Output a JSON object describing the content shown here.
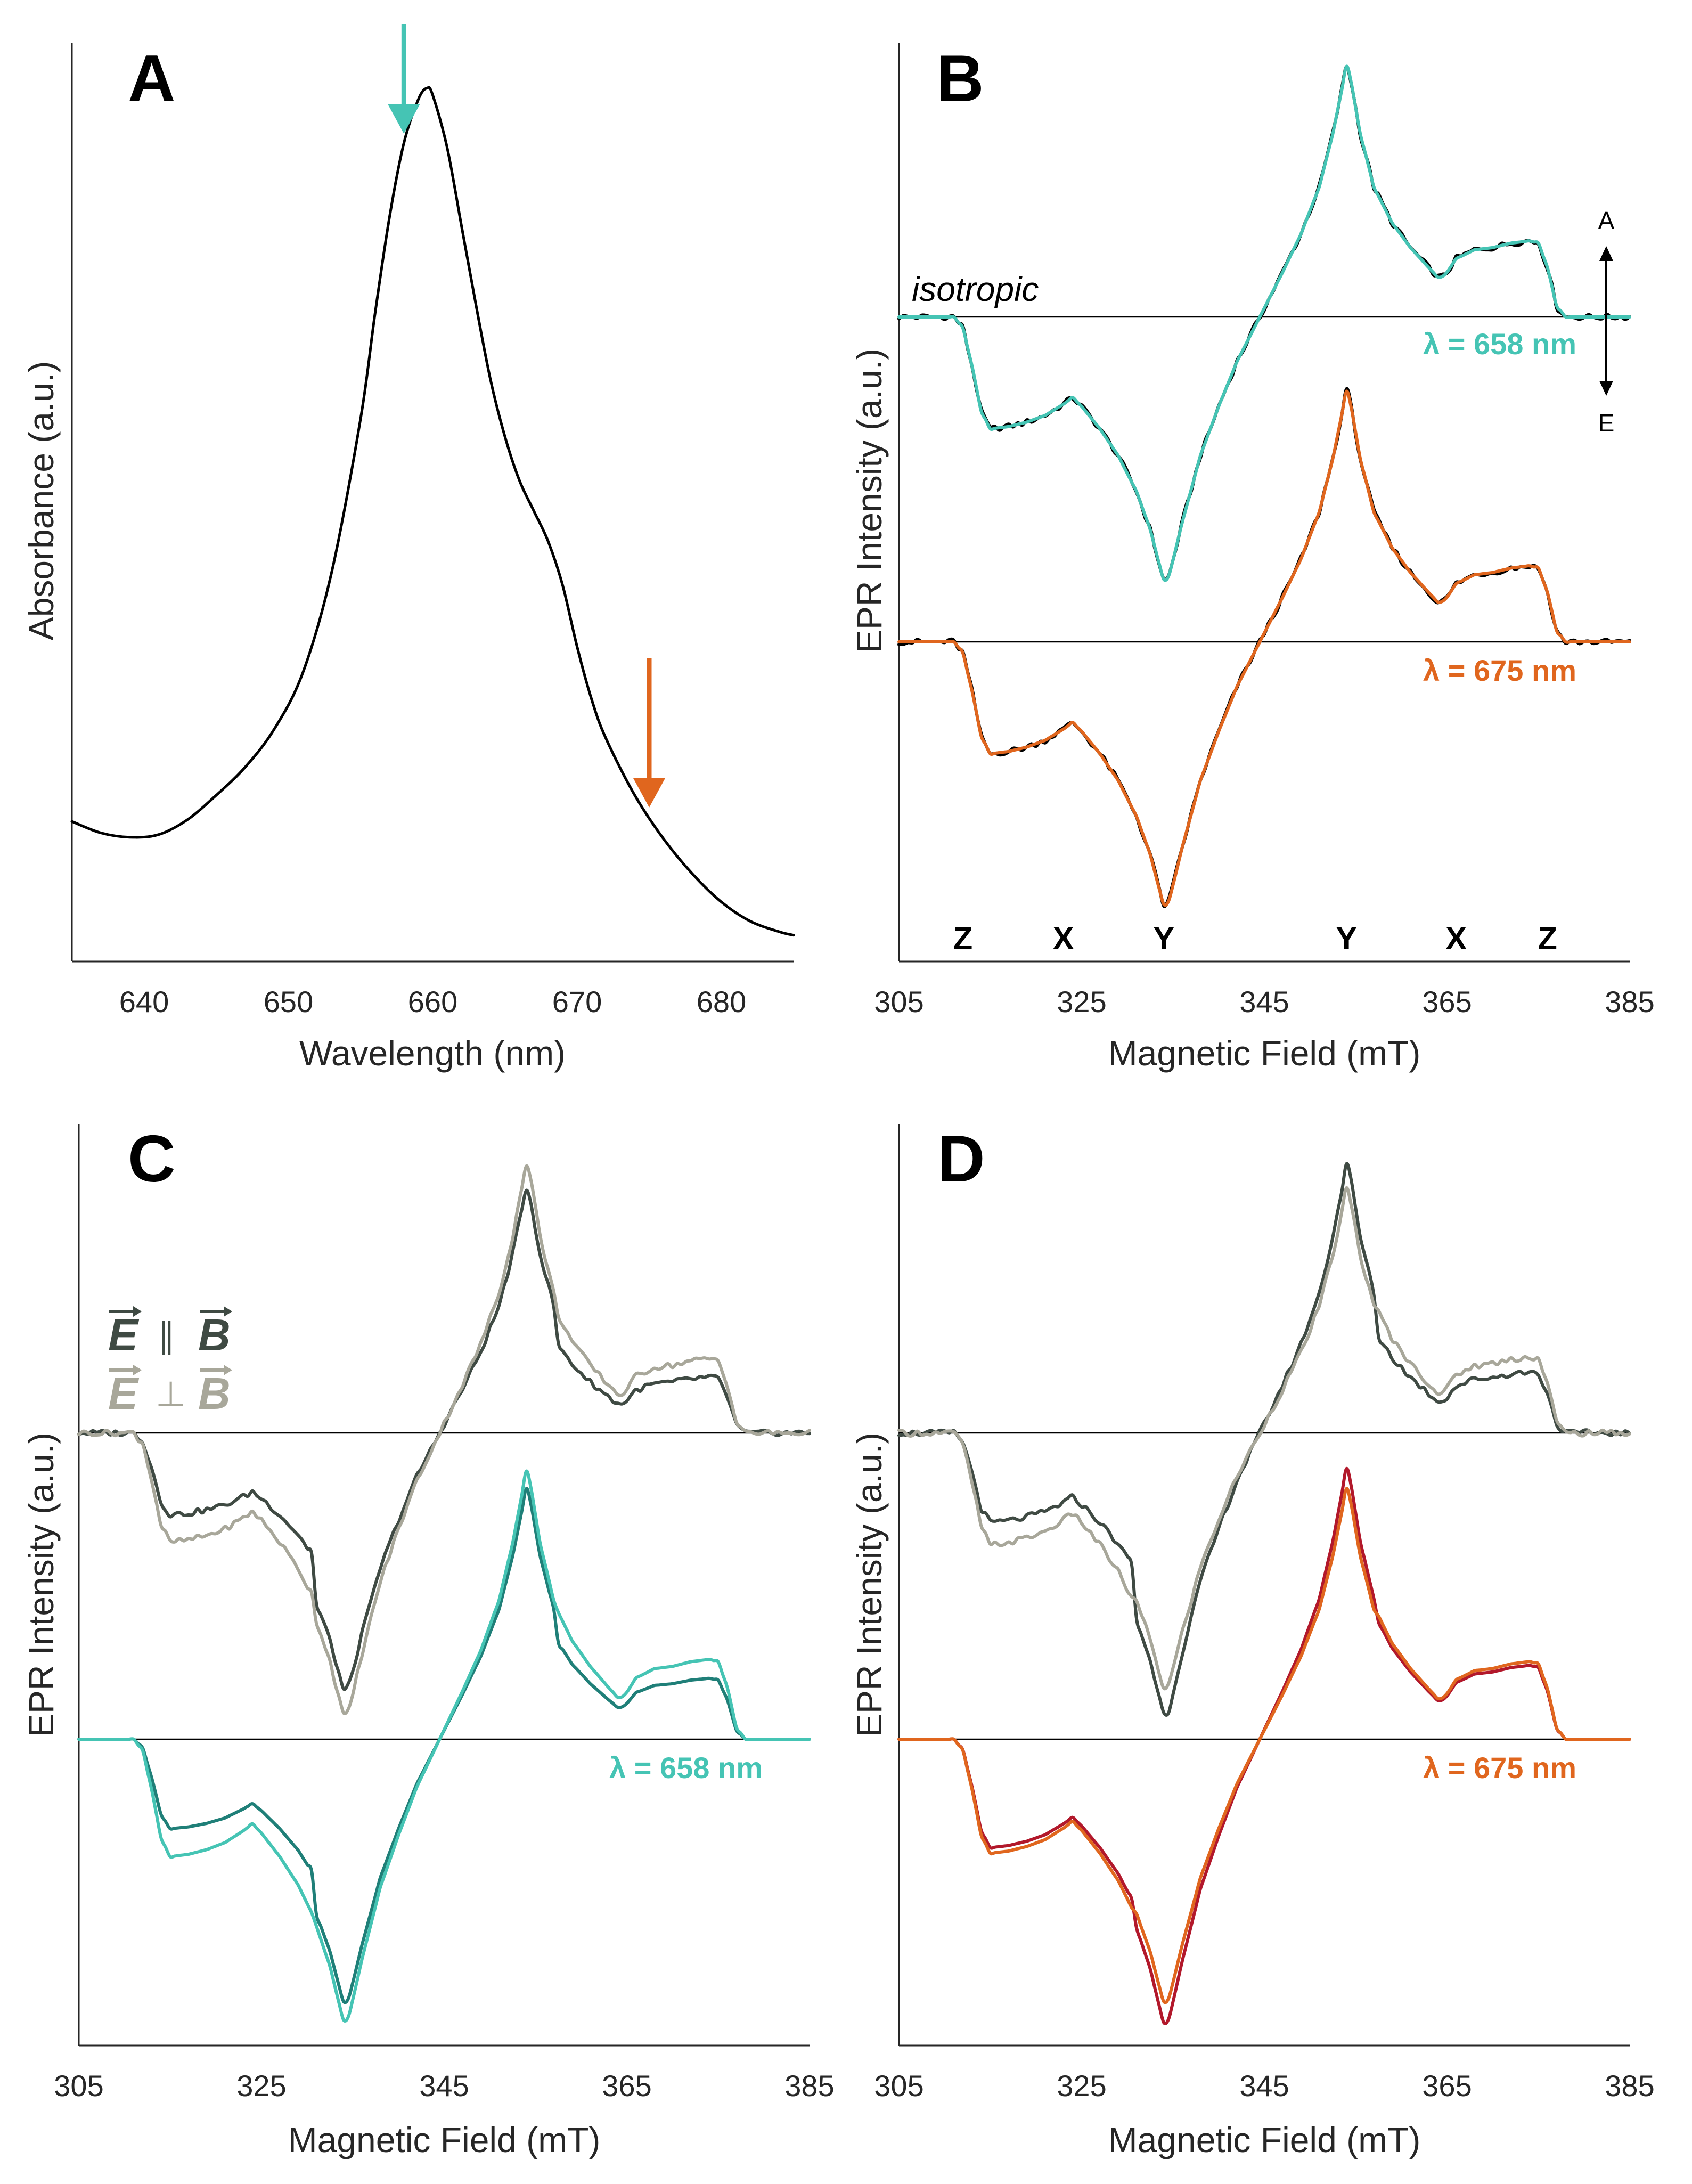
{
  "colors": {
    "teal": "#45c4b4",
    "teal_dark": "#1f7f78",
    "orange": "#e0661e",
    "red_dark": "#b2182b",
    "gray_dark": "#3f4a43",
    "gray_light": "#a8a79a",
    "black": "#000000"
  },
  "chart_data": [
    {
      "panel": "A",
      "type": "line",
      "title": "",
      "xlabel": "Wavelength (nm)",
      "ylabel": "Absorbance (a.u.)",
      "xlim": [
        635,
        685
      ],
      "ylim": [
        0,
        1.05
      ],
      "xticks": [
        "640",
        "650",
        "660",
        "670",
        "680"
      ],
      "series": [
        {
          "name": "absorbance",
          "color": "#000000",
          "x": [
            635,
            637,
            639,
            641,
            643,
            645,
            647,
            649,
            651,
            653,
            655,
            656,
            657,
            658,
            659,
            659.6,
            660,
            661,
            662,
            663,
            664,
            665,
            666,
            667,
            668,
            669,
            670,
            671,
            672,
            674,
            676,
            678,
            680,
            682,
            684,
            685
          ],
          "y": [
            0.16,
            0.147,
            0.142,
            0.145,
            0.162,
            0.19,
            0.222,
            0.265,
            0.33,
            0.445,
            0.62,
            0.74,
            0.85,
            0.935,
            0.985,
            0.998,
            0.99,
            0.93,
            0.84,
            0.75,
            0.665,
            0.6,
            0.55,
            0.515,
            0.48,
            0.43,
            0.36,
            0.3,
            0.255,
            0.19,
            0.14,
            0.1,
            0.068,
            0.046,
            0.034,
            0.03
          ]
        }
      ],
      "annotations": [
        {
          "type": "arrow",
          "x": 658,
          "color": "#45c4b4"
        },
        {
          "type": "arrow",
          "x": 675,
          "color": "#e0661e"
        }
      ]
    },
    {
      "panel": "B",
      "type": "line",
      "xlabel": "Magnetic Field (mT)",
      "ylabel": "EPR Intensity (a.u.)",
      "xlim": [
        305,
        385
      ],
      "xticks": [
        "305",
        "325",
        "345",
        "365",
        "385"
      ],
      "text_annotations": [
        "isotropic"
      ],
      "axis_labels": [
        "Z",
        "X",
        "Y",
        "Y",
        "X",
        "Z"
      ],
      "axis_label_fields": [
        312,
        323,
        334,
        354,
        366,
        376
      ],
      "absorption_label": "A",
      "emission_label": "E",
      "series": [
        {
          "name": "isotropic fit (658 nm)",
          "offset": 1,
          "color": "#000000",
          "amp_scale": 1.0
        },
        {
          "name": "λ = 658 nm",
          "offset": 1,
          "color": "#45c4b4",
          "amp_scale": 1.0
        },
        {
          "name": "isotropic fit (675 nm)",
          "offset": 0,
          "color": "#000000",
          "amp_scale": 1.0
        },
        {
          "name": "λ = 675 nm",
          "offset": 0,
          "color": "#e0661e",
          "amp_scale": 1.0
        }
      ],
      "labels": [
        {
          "text": "λ = 658 nm",
          "color": "#45c4b4"
        },
        {
          "text": "λ = 675 nm",
          "color": "#e0661e"
        }
      ]
    },
    {
      "panel": "C",
      "type": "line",
      "xlabel": "Magnetic Field (mT)",
      "ylabel": "EPR Intensity (a.u.)",
      "xlim": [
        305,
        385
      ],
      "xticks": [
        "305",
        "325",
        "345",
        "365",
        "385"
      ],
      "legend": [
        {
          "left": "E",
          "op": "∥",
          "right": "B",
          "color": "#3f4a43"
        },
        {
          "left": "E",
          "op": "⊥",
          "right": "B",
          "color": "#a8a79a"
        }
      ],
      "series": [
        {
          "name": "E ∥ B (upper)",
          "color": "#3f4a43"
        },
        {
          "name": "E ⊥ B (upper)",
          "color": "#a8a79a"
        },
        {
          "name": "E ∥ B, λ = 658 nm",
          "color": "#1f7f78"
        },
        {
          "name": "E ⊥ B, λ = 658 nm",
          "color": "#45c4b4"
        }
      ],
      "labels": [
        {
          "text": "λ = 658 nm",
          "color": "#45c4b4"
        }
      ]
    },
    {
      "panel": "D",
      "type": "line",
      "xlabel": "Magnetic Field (mT)",
      "ylabel": "EPR Intensity (a.u.)",
      "xlim": [
        305,
        385
      ],
      "xticks": [
        "305",
        "325",
        "345",
        "365",
        "385"
      ],
      "series": [
        {
          "name": "E ∥ B (upper)",
          "color": "#3f4a43"
        },
        {
          "name": "E ⊥ B (upper)",
          "color": "#a8a79a"
        },
        {
          "name": "E ∥ B, λ = 675 nm",
          "color": "#b2182b"
        },
        {
          "name": "E ⊥ B, λ = 675 nm",
          "color": "#e0661e"
        }
      ],
      "labels": [
        {
          "text": "λ = 675 nm",
          "color": "#e0661e"
        }
      ]
    }
  ],
  "epr_model": {
    "comment": "Triplet EPR polarization pattern in data units (field mT, intensity a.u.); baseline = 0, absorption positive.",
    "x": [
      305,
      311,
      312,
      313,
      314,
      315,
      317,
      319,
      321,
      323,
      324,
      325,
      327,
      329,
      331,
      332.5,
      333.6,
      334.2,
      334.8,
      336,
      338,
      340,
      342,
      344.5,
      347,
      349,
      351,
      352.5,
      353.5,
      354.0,
      354.5,
      355.5,
      357,
      359,
      361,
      363,
      364.2,
      365,
      366,
      368,
      370,
      372,
      374,
      375,
      376,
      377,
      378,
      385
    ],
    "y": [
      0,
      0,
      -0.05,
      -0.22,
      -0.42,
      -0.5,
      -0.49,
      -0.47,
      -0.44,
      -0.39,
      -0.36,
      -0.4,
      -0.5,
      -0.62,
      -0.78,
      -0.95,
      -1.12,
      -1.2,
      -1.12,
      -0.92,
      -0.62,
      -0.4,
      -0.2,
      0.0,
      0.2,
      0.37,
      0.58,
      0.82,
      1.02,
      1.12,
      1.05,
      0.82,
      0.58,
      0.42,
      0.31,
      0.22,
      0.17,
      0.2,
      0.26,
      0.3,
      0.31,
      0.33,
      0.34,
      0.33,
      0.22,
      0.05,
      0,
      0
    ]
  }
}
